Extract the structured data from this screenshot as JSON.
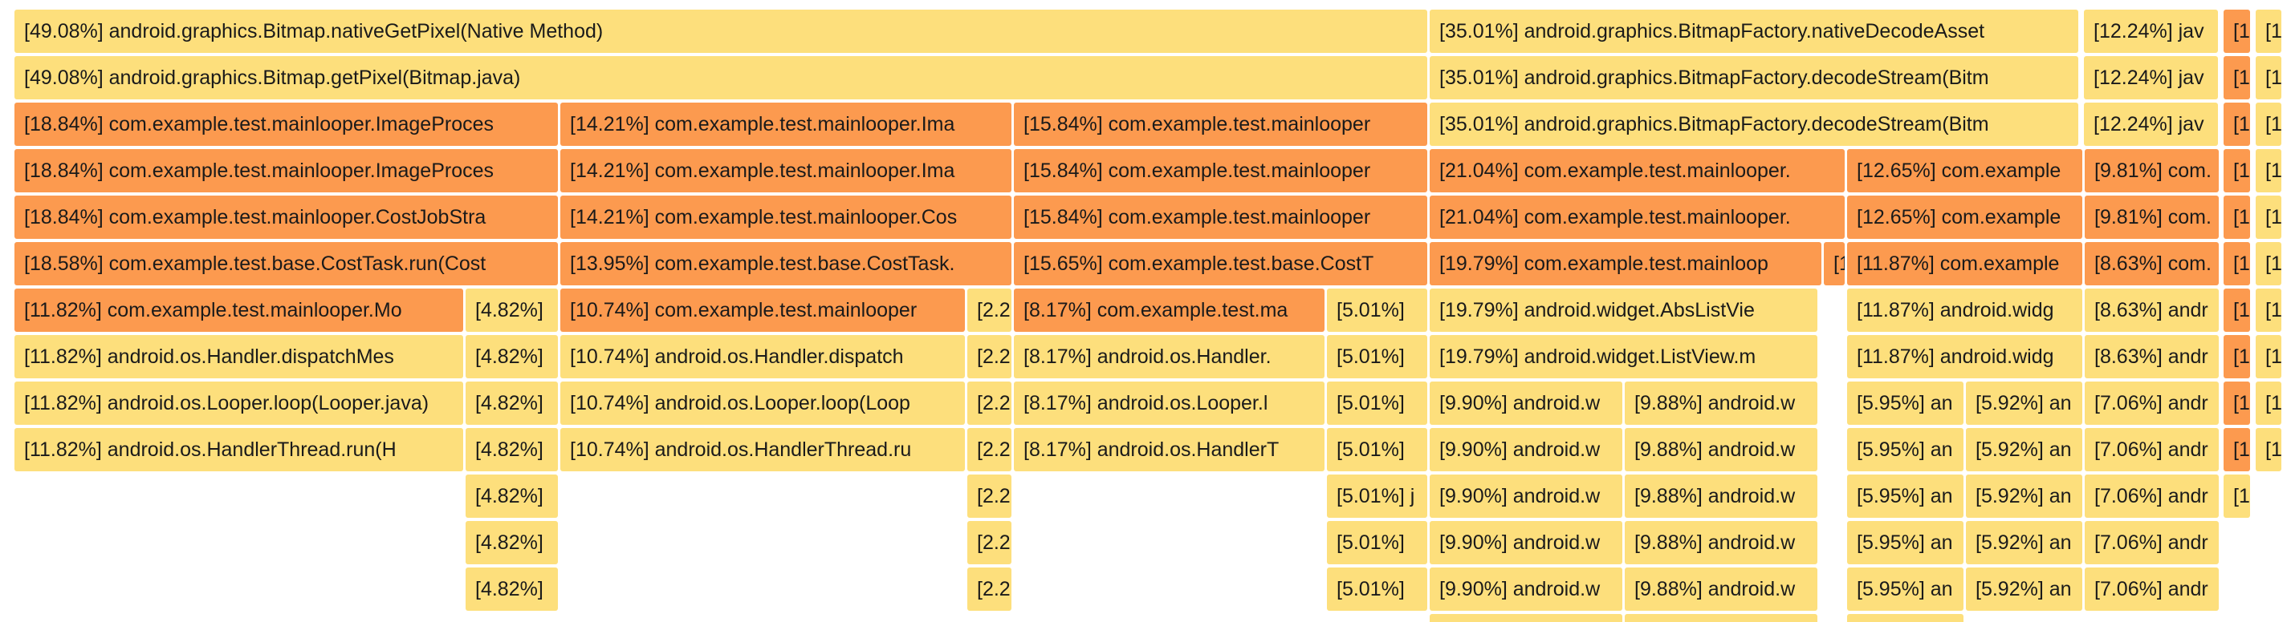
{
  "colors": {
    "cold": "#fddf7c",
    "hot": "#fc9a4f"
  },
  "rows": [
    [
      {
        "label": "[49.08%] android.graphics.Bitmap.nativeGetPixel(Native Method)",
        "tone": "cold"
      },
      {
        "label": "[35.01%] android.graphics.BitmapFactory.nativeDecodeAsset",
        "tone": "cold"
      },
      {
        "label": "[12.24%] jav",
        "tone": "cold"
      },
      {
        "label": "[1.",
        "tone": "hot"
      },
      {
        "label": "[1",
        "tone": "cold"
      }
    ],
    [
      {
        "label": "[49.08%] android.graphics.Bitmap.getPixel(Bitmap.java)",
        "tone": "cold"
      },
      {
        "label": "[35.01%] android.graphics.BitmapFactory.decodeStream(Bitm",
        "tone": "cold"
      },
      {
        "label": "[12.24%] jav",
        "tone": "cold"
      },
      {
        "label": "[1.",
        "tone": "hot"
      },
      {
        "label": "[1",
        "tone": "cold"
      }
    ],
    [
      {
        "label": "[18.84%] com.example.test.mainlooper.ImageProces",
        "tone": "hot"
      },
      {
        "label": "[14.21%] com.example.test.mainlooper.Ima",
        "tone": "hot"
      },
      {
        "label": "[15.84%] com.example.test.mainlooper",
        "tone": "hot"
      },
      {
        "label": "[35.01%] android.graphics.BitmapFactory.decodeStream(Bitm",
        "tone": "cold"
      },
      {
        "label": "[12.24%] jav",
        "tone": "cold"
      },
      {
        "label": "[1.",
        "tone": "hot"
      },
      {
        "label": "[1",
        "tone": "cold"
      }
    ],
    [
      {
        "label": "[18.84%] com.example.test.mainlooper.ImageProces",
        "tone": "hot"
      },
      {
        "label": "[14.21%] com.example.test.mainlooper.Ima",
        "tone": "hot"
      },
      {
        "label": "[15.84%] com.example.test.mainlooper",
        "tone": "hot"
      },
      {
        "label": "[21.04%] com.example.test.mainlooper.",
        "tone": "hot"
      },
      {
        "label": "[12.65%] com.example",
        "tone": "hot"
      },
      {
        "label": "[9.81%] com.",
        "tone": "hot"
      },
      {
        "label": "[1.",
        "tone": "hot"
      },
      {
        "label": "[1",
        "tone": "cold"
      }
    ],
    [
      {
        "label": "[18.84%] com.example.test.mainlooper.CostJobStra",
        "tone": "hot"
      },
      {
        "label": "[14.21%] com.example.test.mainlooper.Cos",
        "tone": "hot"
      },
      {
        "label": "[15.84%] com.example.test.mainlooper",
        "tone": "hot"
      },
      {
        "label": "[21.04%] com.example.test.mainlooper.",
        "tone": "hot"
      },
      {
        "label": "[12.65%] com.example",
        "tone": "hot"
      },
      {
        "label": "[9.81%] com.",
        "tone": "hot"
      },
      {
        "label": "[1.",
        "tone": "hot"
      },
      {
        "label": "[1",
        "tone": "cold"
      }
    ],
    [
      {
        "label": "[18.58%] com.example.test.base.CostTask.run(Cost",
        "tone": "hot"
      },
      {
        "label": "[13.95%] com.example.test.base.CostTask.",
        "tone": "hot"
      },
      {
        "label": "[15.65%] com.example.test.base.CostT",
        "tone": "hot"
      },
      {
        "label": "[19.79%] com.example.test.mainloop",
        "tone": "hot"
      },
      {
        "label": "[1",
        "tone": "hot"
      },
      {
        "label": "[11.87%] com.example",
        "tone": "hot"
      },
      {
        "label": "[8.63%] com.",
        "tone": "hot"
      },
      {
        "label": "[1.",
        "tone": "hot"
      },
      {
        "label": "[1",
        "tone": "cold"
      }
    ],
    [
      {
        "label": "[11.82%] com.example.test.mainlooper.Mo",
        "tone": "hot"
      },
      {
        "label": "[4.82%]",
        "tone": "cold"
      },
      {
        "label": "[10.74%] com.example.test.mainlooper",
        "tone": "hot"
      },
      {
        "label": "[2.2",
        "tone": "cold"
      },
      {
        "label": "[8.17%] com.example.test.ma",
        "tone": "hot"
      },
      {
        "label": "[5.01%]",
        "tone": "cold"
      },
      {
        "label": "[19.79%] android.widget.AbsListVie",
        "tone": "cold"
      },
      {
        "label": "[11.87%] android.widg",
        "tone": "cold"
      },
      {
        "label": "[8.63%] andr",
        "tone": "cold"
      },
      {
        "label": "[1.",
        "tone": "hot"
      },
      {
        "label": "[1",
        "tone": "cold"
      }
    ],
    [
      {
        "label": "[11.82%] android.os.Handler.dispatchMes",
        "tone": "cold"
      },
      {
        "label": "[4.82%]",
        "tone": "cold"
      },
      {
        "label": "[10.74%] android.os.Handler.dispatch",
        "tone": "cold"
      },
      {
        "label": "[2.2",
        "tone": "cold"
      },
      {
        "label": "[8.17%] android.os.Handler.",
        "tone": "cold"
      },
      {
        "label": "[5.01%]",
        "tone": "cold"
      },
      {
        "label": "[19.79%] android.widget.ListView.m",
        "tone": "cold"
      },
      {
        "label": "[11.87%] android.widg",
        "tone": "cold"
      },
      {
        "label": "[8.63%] andr",
        "tone": "cold"
      },
      {
        "label": "[1.",
        "tone": "hot"
      },
      {
        "label": "[1.",
        "tone": "cold"
      }
    ],
    [
      {
        "label": "[11.82%] android.os.Looper.loop(Looper.java)",
        "tone": "cold"
      },
      {
        "label": "[4.82%]",
        "tone": "cold"
      },
      {
        "label": "[10.74%] android.os.Looper.loop(Loop",
        "tone": "cold"
      },
      {
        "label": "[2.2",
        "tone": "cold"
      },
      {
        "label": "[8.17%] android.os.Looper.l",
        "tone": "cold"
      },
      {
        "label": "[5.01%]",
        "tone": "cold"
      },
      {
        "label": "[9.90%] android.w",
        "tone": "cold"
      },
      {
        "label": "[9.88%] android.w",
        "tone": "cold"
      },
      {
        "label": "[5.95%] an",
        "tone": "cold"
      },
      {
        "label": "[5.92%] an",
        "tone": "cold"
      },
      {
        "label": "[7.06%] andr",
        "tone": "cold"
      },
      {
        "label": "[1.",
        "tone": "hot"
      },
      {
        "label": "[1.",
        "tone": "cold"
      }
    ],
    [
      {
        "label": "[11.82%] android.os.HandlerThread.run(H",
        "tone": "cold"
      },
      {
        "label": "[4.82%]",
        "tone": "cold"
      },
      {
        "label": "[10.74%] android.os.HandlerThread.ru",
        "tone": "cold"
      },
      {
        "label": "[2.2",
        "tone": "cold"
      },
      {
        "label": "[8.17%] android.os.HandlerT",
        "tone": "cold"
      },
      {
        "label": "[5.01%]",
        "tone": "cold"
      },
      {
        "label": "[9.90%] android.w",
        "tone": "cold"
      },
      {
        "label": "[9.88%] android.w",
        "tone": "cold"
      },
      {
        "label": "[5.95%] an",
        "tone": "cold"
      },
      {
        "label": "[5.92%] an",
        "tone": "cold"
      },
      {
        "label": "[7.06%] andr",
        "tone": "cold"
      },
      {
        "label": "[1.",
        "tone": "hot"
      },
      {
        "label": "[1.",
        "tone": "cold"
      }
    ],
    [
      {
        "label": "[4.82%]",
        "tone": "cold"
      },
      {
        "label": "[2.2",
        "tone": "cold"
      },
      {
        "label": "[5.01%] j",
        "tone": "cold"
      },
      {
        "label": "[9.90%] android.w",
        "tone": "cold"
      },
      {
        "label": "[9.88%] android.w",
        "tone": "cold"
      },
      {
        "label": "[5.95%] an",
        "tone": "cold"
      },
      {
        "label": "[5.92%] an",
        "tone": "cold"
      },
      {
        "label": "[7.06%] andr",
        "tone": "cold"
      },
      {
        "label": "[1.",
        "tone": "cold"
      }
    ],
    [
      {
        "label": "[4.82%]",
        "tone": "cold"
      },
      {
        "label": "[2.2",
        "tone": "cold"
      },
      {
        "label": "[5.01%]",
        "tone": "cold"
      },
      {
        "label": "[9.90%] android.w",
        "tone": "cold"
      },
      {
        "label": "[9.88%] android.w",
        "tone": "cold"
      },
      {
        "label": "[5.95%] an",
        "tone": "cold"
      },
      {
        "label": "[5.92%] an",
        "tone": "cold"
      },
      {
        "label": "[7.06%] andr",
        "tone": "cold"
      }
    ],
    [
      {
        "label": "[4.82%]",
        "tone": "cold"
      },
      {
        "label": "[2.2",
        "tone": "cold"
      },
      {
        "label": "[5.01%]",
        "tone": "cold"
      },
      {
        "label": "[9.90%] android.w",
        "tone": "cold"
      },
      {
        "label": "[9.88%] android.w",
        "tone": "cold"
      },
      {
        "label": "[5.95%] an",
        "tone": "cold"
      },
      {
        "label": "[5.92%] an",
        "tone": "cold"
      },
      {
        "label": "[7.06%] andr",
        "tone": "cold"
      }
    ],
    [
      {
        "label": "",
        "tone": "cold"
      },
      {
        "label": "",
        "tone": "cold"
      },
      {
        "label": "",
        "tone": "cold"
      }
    ]
  ]
}
